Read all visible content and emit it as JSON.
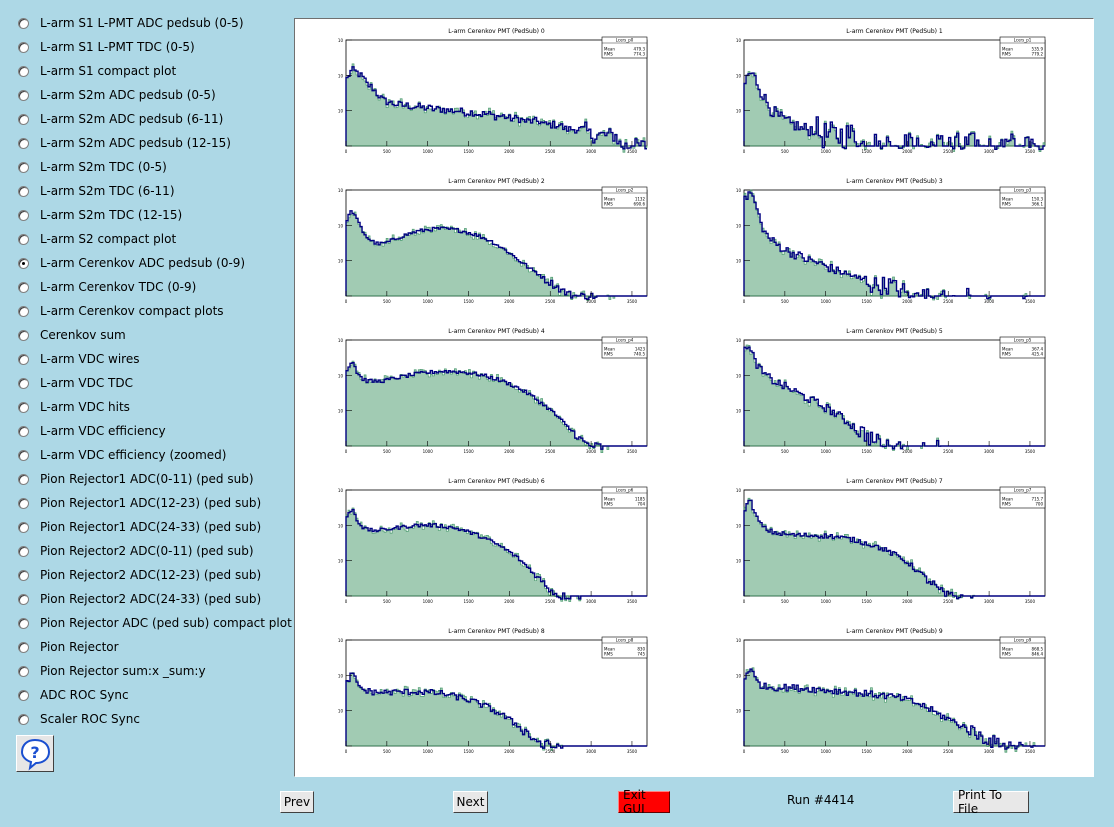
{
  "menu": {
    "selected_index": 10,
    "items": [
      "L-arm S1 L-PMT ADC pedsub (0-5)",
      "L-arm S1 L-PMT TDC (0-5)",
      "L-arm S1 compact plot",
      "L-arm S2m ADC pedsub (0-5)",
      "L-arm S2m ADC pedsub (6-11)",
      "L-arm S2m ADC pedsub (12-15)",
      "L-arm S2m TDC (0-5)",
      "L-arm S2m TDC (6-11)",
      "L-arm S2m TDC (12-15)",
      "L-arm S2 compact plot",
      "L-arm Cerenkov ADC pedsub (0-9)",
      "L-arm Cerenkov TDC (0-9)",
      "L-arm Cerenkov compact plots",
      "Cerenkov sum",
      "L-arm VDC wires",
      "L-arm VDC TDC",
      "L-arm VDC hits",
      "L-arm VDC efficiency",
      "L-arm VDC efficiency (zoomed)",
      "Pion Rejector1 ADC(0-11) (ped sub)",
      "Pion Rejector1 ADC(12-23) (ped sub)",
      "Pion Rejector1 ADC(24-33) (ped sub)",
      "Pion Rejector2 ADC(0-11) (ped sub)",
      "Pion Rejector2 ADC(12-23) (ped sub)",
      "Pion Rejector2 ADC(24-33) (ped sub)",
      "Pion Rejector ADC (ped sub) compact plot",
      "Pion Rejector",
      "Pion Rejector sum:x _sum:y",
      "ADC ROC Sync",
      "Scaler ROC Sync"
    ]
  },
  "help": {
    "icon": "help-question-icon",
    "glyph": "?"
  },
  "buttons": {
    "prev": "Prev",
    "next": "Next",
    "exit": "Exit GUI",
    "print": "Print To File"
  },
  "run_label": "Run #4414",
  "colors": {
    "background": "#add8e6",
    "hist_line": "#000080",
    "hist_fill": "#2e8b57",
    "exit": "#ff0000"
  },
  "chart_data": [
    {
      "type": "histogram",
      "title": "L-arm Cerenkov PMT (PedSub) 0",
      "stats": {
        "name": "Lcers_p0",
        "entries": "",
        "mean": "479.3",
        "rms": "774.3"
      },
      "xlim": [
        0,
        3500
      ],
      "xticks": [
        "0",
        "500",
        "1000",
        "1500",
        "2000",
        "2500",
        "3000",
        "3500"
      ],
      "log_y": true,
      "ylim_exp": [
        0,
        3
      ],
      "shape": [
        80,
        140,
        120,
        90,
        55,
        45,
        30,
        20,
        18,
        16,
        15,
        14,
        14,
        13,
        13,
        12,
        12,
        11,
        11,
        11,
        10,
        10,
        10,
        9,
        9,
        9,
        8,
        8,
        8,
        7,
        7,
        7,
        6,
        6,
        6,
        5,
        5,
        5,
        5,
        4,
        4,
        4,
        4,
        3,
        3,
        3,
        3,
        3,
        2,
        2,
        2,
        2,
        2,
        2,
        1,
        1,
        1,
        1,
        1,
        1
      ],
      "noise": 0.25
    },
    {
      "type": "histogram",
      "title": "L-arm Cerenkov PMT (PedSub) 1",
      "stats": {
        "name": "Lcers_p1",
        "entries": "",
        "mean": "535.9",
        "rms": "779.2"
      },
      "xlim": [
        0,
        3500
      ],
      "xticks": [
        "0",
        "500",
        "1000",
        "1500",
        "2000",
        "2500",
        "3000",
        "3500"
      ],
      "log_y": true,
      "ylim_exp": [
        0,
        3
      ],
      "shape": [
        60,
        120,
        80,
        40,
        20,
        12,
        8,
        6,
        5,
        4,
        4,
        3,
        3,
        3,
        3,
        2,
        2,
        2,
        2,
        2,
        2,
        2,
        2,
        1,
        1,
        1,
        1,
        1,
        1,
        1,
        1,
        1,
        1,
        1,
        1,
        1,
        1,
        1,
        1,
        1,
        1,
        1,
        1,
        1,
        1,
        1,
        1,
        1,
        1,
        1,
        1,
        1,
        1,
        1,
        1,
        1,
        1,
        1,
        1,
        1
      ],
      "noise": 0.45
    },
    {
      "type": "histogram",
      "title": "L-arm Cerenkov PMT (PedSub) 2",
      "stats": {
        "name": "Lcers_p2",
        "entries": "",
        "mean": "1132",
        "rms": "690.6"
      },
      "xlim": [
        0,
        3500
      ],
      "xticks": [
        "0",
        "500",
        "1000",
        "1500",
        "2000",
        "2500",
        "3000",
        "3500"
      ],
      "log_y": true,
      "ylim_exp": [
        0,
        3
      ],
      "shape": [
        150,
        260,
        140,
        70,
        45,
        35,
        30,
        30,
        33,
        38,
        44,
        50,
        56,
        62,
        68,
        72,
        76,
        78,
        80,
        80,
        78,
        76,
        72,
        68,
        62,
        56,
        50,
        44,
        38,
        32,
        26,
        21,
        17,
        13,
        10,
        8,
        6,
        5,
        4,
        3,
        2.5,
        2,
        1.6,
        1.3,
        1.1,
        1,
        1,
        1,
        1,
        1,
        0,
        0,
        1,
        0,
        0,
        0,
        0,
        0,
        0,
        0
      ],
      "noise": 0.12
    },
    {
      "type": "histogram",
      "title": "L-arm Cerenkov PMT (PedSub) 3",
      "stats": {
        "name": "Lcers_p3",
        "entries": "",
        "mean": "150.3",
        "rms": "366.1"
      },
      "xlim": [
        0,
        3500
      ],
      "xticks": [
        "0",
        "500",
        "1000",
        "1500",
        "2000",
        "2500",
        "3000",
        "3500"
      ],
      "log_y": true,
      "ylim_exp": [
        0,
        3
      ],
      "shape": [
        500,
        900,
        400,
        120,
        60,
        40,
        30,
        25,
        20,
        17,
        15,
        13,
        11,
        10,
        9,
        8,
        7,
        6,
        5,
        5,
        4,
        4,
        3,
        3,
        3,
        2,
        2,
        2,
        2,
        2,
        1.5,
        1.5,
        1,
        1,
        1,
        1,
        1,
        1,
        1,
        1,
        0,
        1,
        0,
        0,
        1,
        0,
        0,
        0,
        1,
        0,
        0,
        0,
        0,
        0,
        0,
        1,
        0,
        0,
        0,
        0
      ],
      "noise": 0.3
    },
    {
      "type": "histogram",
      "title": "L-arm Cerenkov PMT (PedSub) 4",
      "stats": {
        "name": "Lcers_p4",
        "entries": "",
        "mean": "1423",
        "rms": "740.5"
      },
      "xlim": [
        0,
        3500
      ],
      "xticks": [
        "0",
        "500",
        "1000",
        "1500",
        "2000",
        "2500",
        "3000",
        "3500"
      ],
      "log_y": true,
      "ylim_exp": [
        0,
        3
      ],
      "shape": [
        140,
        260,
        120,
        80,
        70,
        68,
        68,
        70,
        74,
        80,
        86,
        92,
        98,
        104,
        110,
        116,
        120,
        124,
        128,
        130,
        130,
        128,
        126,
        122,
        118,
        112,
        106,
        98,
        90,
        82,
        74,
        66,
        58,
        50,
        42,
        35,
        29,
        23,
        18,
        14,
        11,
        8,
        6,
        4,
        3,
        2.2,
        1.6,
        1.2,
        1,
        1,
        1,
        0,
        1,
        0,
        0,
        0,
        0,
        0,
        0,
        0
      ],
      "noise": 0.12
    },
    {
      "type": "histogram",
      "title": "L-arm Cerenkov PMT (PedSub) 5",
      "stats": {
        "name": "Lcers_p5",
        "entries": "",
        "mean": "367.4",
        "rms": "425.4"
      },
      "xlim": [
        0,
        3500
      ],
      "xticks": [
        "0",
        "500",
        "1000",
        "1500",
        "2000",
        "2500",
        "3000",
        "3500"
      ],
      "log_y": true,
      "ylim_exp": [
        0,
        3
      ],
      "shape": [
        800,
        500,
        250,
        140,
        100,
        80,
        65,
        55,
        47,
        40,
        34,
        28,
        24,
        20,
        17,
        14,
        12,
        10,
        8,
        6.5,
        5,
        4,
        3,
        2.5,
        2,
        1.6,
        1.3,
        1,
        1,
        1,
        1,
        1,
        0,
        1,
        0,
        1,
        0,
        0,
        1,
        0,
        0,
        0,
        0,
        0,
        0,
        0,
        0,
        0,
        0,
        0,
        0,
        0,
        0,
        0,
        0,
        0,
        0,
        0,
        0,
        0
      ],
      "noise": 0.28
    },
    {
      "type": "histogram",
      "title": "L-arm Cerenkov PMT (PedSub) 6",
      "stats": {
        "name": "Lcers_p6",
        "entries": "",
        "mean": "1185",
        "rms": "704"
      },
      "xlim": [
        0,
        3500
      ],
      "xticks": [
        "0",
        "500",
        "1000",
        "1500",
        "2000",
        "2500",
        "3000",
        "3500"
      ],
      "log_y": true,
      "ylim_exp": [
        0,
        3
      ],
      "shape": [
        160,
        300,
        140,
        90,
        75,
        72,
        72,
        74,
        78,
        82,
        86,
        90,
        94,
        98,
        100,
        102,
        102,
        100,
        98,
        94,
        90,
        85,
        79,
        72,
        65,
        58,
        51,
        44,
        38,
        32,
        27,
        22,
        18,
        14,
        11,
        8,
        6,
        4,
        3,
        2.2,
        1.6,
        1.2,
        1,
        1,
        1,
        0,
        1,
        0,
        0,
        0,
        0,
        0,
        0,
        0,
        0,
        0,
        0,
        0,
        0,
        0
      ],
      "noise": 0.12
    },
    {
      "type": "histogram",
      "title": "L-arm Cerenkov PMT (PedSub) 7",
      "stats": {
        "name": "Lcers_p7",
        "entries": "",
        "mean": "715.7",
        "rms": "700"
      },
      "xlim": [
        0,
        3500
      ],
      "xticks": [
        "0",
        "500",
        "1000",
        "1500",
        "2000",
        "2500",
        "3000",
        "3500"
      ],
      "log_y": true,
      "ylim_exp": [
        0,
        3
      ],
      "shape": [
        300,
        500,
        200,
        110,
        80,
        68,
        62,
        58,
        56,
        54,
        53,
        52,
        52,
        52,
        52,
        51,
        50,
        49,
        47,
        45,
        42,
        40,
        37,
        34,
        31,
        28,
        25,
        22,
        19,
        16,
        14,
        11,
        9,
        7,
        5,
        4,
        3,
        2.2,
        1.6,
        1.2,
        1,
        1,
        1,
        1,
        0,
        1,
        0,
        0,
        0,
        0,
        0,
        0,
        0,
        0,
        0,
        0,
        0,
        0,
        0,
        0
      ],
      "noise": 0.16
    },
    {
      "type": "histogram",
      "title": "L-arm Cerenkov PMT (PedSub) 8",
      "stats": {
        "name": "Lcers_p8",
        "entries": "",
        "mean": "830",
        "rms": "745"
      },
      "xlim": [
        0,
        3500
      ],
      "xticks": [
        "0",
        "500",
        "1000",
        "1500",
        "2000",
        "2500",
        "3000",
        "3500"
      ],
      "log_y": true,
      "ylim_exp": [
        0,
        3
      ],
      "shape": [
        60,
        110,
        60,
        40,
        36,
        34,
        33,
        33,
        33,
        33,
        34,
        34,
        34,
        34,
        34,
        34,
        33,
        32,
        31,
        30,
        28,
        26,
        24,
        22,
        20,
        18,
        16,
        14,
        12,
        10,
        8.5,
        7,
        5.5,
        4.5,
        3.5,
        2.7,
        2,
        1.6,
        1.2,
        1,
        1,
        1,
        1,
        0,
        1,
        0,
        0,
        0,
        0,
        0,
        0,
        0,
        0,
        0,
        0,
        0,
        0,
        0,
        0,
        0
      ],
      "noise": 0.2
    },
    {
      "type": "histogram",
      "title": "L-arm Cerenkov PMT (PedSub) 9",
      "stats": {
        "name": "Lcers_p9",
        "entries": "",
        "mean": "868.5",
        "rms": "846.4"
      },
      "xlim": [
        0,
        3500
      ],
      "xticks": [
        "0",
        "500",
        "1000",
        "1500",
        "2000",
        "2500",
        "3000",
        "3500"
      ],
      "log_y": true,
      "ylim_exp": [
        0,
        3
      ],
      "shape": [
        90,
        160,
        80,
        55,
        48,
        46,
        45,
        45,
        45,
        45,
        44,
        43,
        42,
        41,
        40,
        39,
        38,
        37,
        36,
        35,
        34,
        33,
        32,
        31,
        30,
        29,
        28,
        27,
        26,
        25,
        24,
        22,
        20,
        18,
        16,
        14,
        12,
        10,
        8,
        7,
        6,
        5,
        4.2,
        3.6,
        3,
        2.5,
        2.1,
        1.8,
        1.5,
        1.3,
        1.1,
        1,
        1,
        1,
        1,
        1,
        0,
        1,
        0,
        0
      ],
      "noise": 0.22
    }
  ]
}
